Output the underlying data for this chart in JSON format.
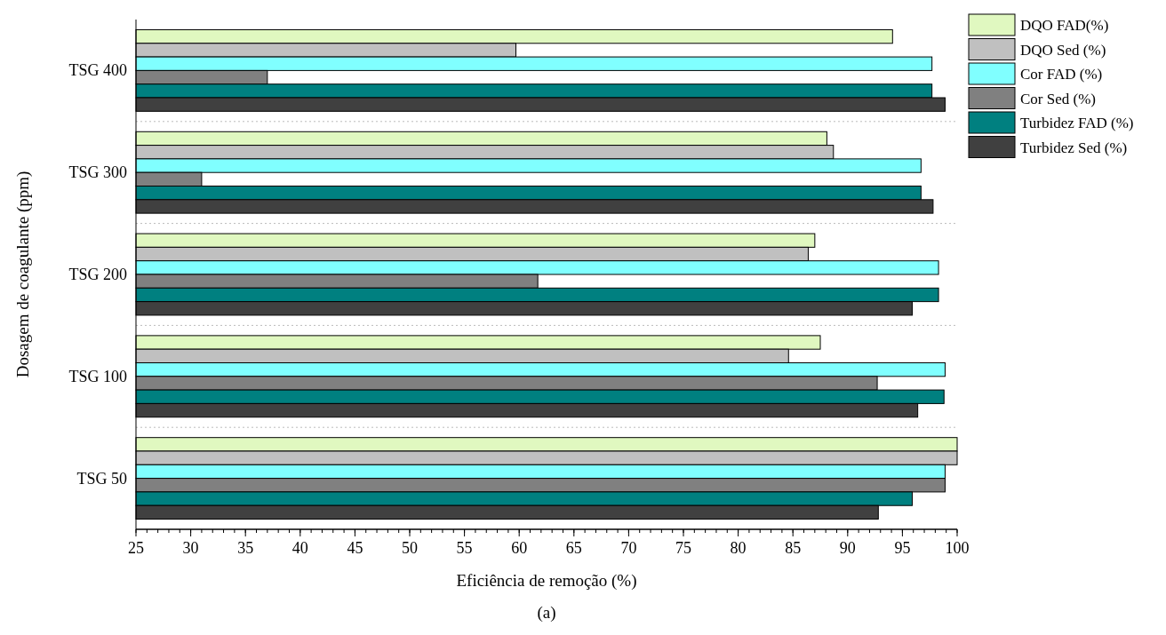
{
  "chart_data": {
    "type": "bar",
    "orientation": "horizontal",
    "xlabel": "Eficiência de remoção (%)",
    "ylabel": "Dosagem de coagulante (ppm)",
    "annotations": [
      "(a)"
    ],
    "categories": [
      "TSG 400",
      "TSG 300",
      "TSG 200",
      "TSG 100",
      "TSG 50"
    ],
    "xlim": [
      25,
      100
    ],
    "xticks": [
      25,
      30,
      35,
      40,
      45,
      50,
      55,
      60,
      65,
      70,
      75,
      80,
      85,
      90,
      95,
      100
    ],
    "legend": "top right",
    "series": [
      {
        "name": "DQO FAD(%)",
        "color": "#e0f8c0",
        "values": [
          94.1,
          88.1,
          87.0,
          87.5,
          100
        ]
      },
      {
        "name": "DQO Sed (%)",
        "color": "#c0c0c0",
        "values": [
          59.7,
          88.7,
          86.4,
          84.6,
          100
        ]
      },
      {
        "name": "Cor FAD (%)",
        "color": "#80ffff",
        "values": [
          97.7,
          96.7,
          98.3,
          98.9,
          98.9
        ]
      },
      {
        "name": "Cor Sed (%)",
        "color": "#808080",
        "values": [
          37,
          31,
          61.7,
          92.7,
          98.9
        ]
      },
      {
        "name": "Turbidez FAD (%)",
        "color": "#008080",
        "values": [
          97.7,
          96.7,
          98.3,
          98.8,
          95.9
        ]
      },
      {
        "name": "Turbidez Sed (%)",
        "color": "#404040",
        "values": [
          98.9,
          97.8,
          95.9,
          96.4,
          92.8
        ]
      }
    ]
  }
}
